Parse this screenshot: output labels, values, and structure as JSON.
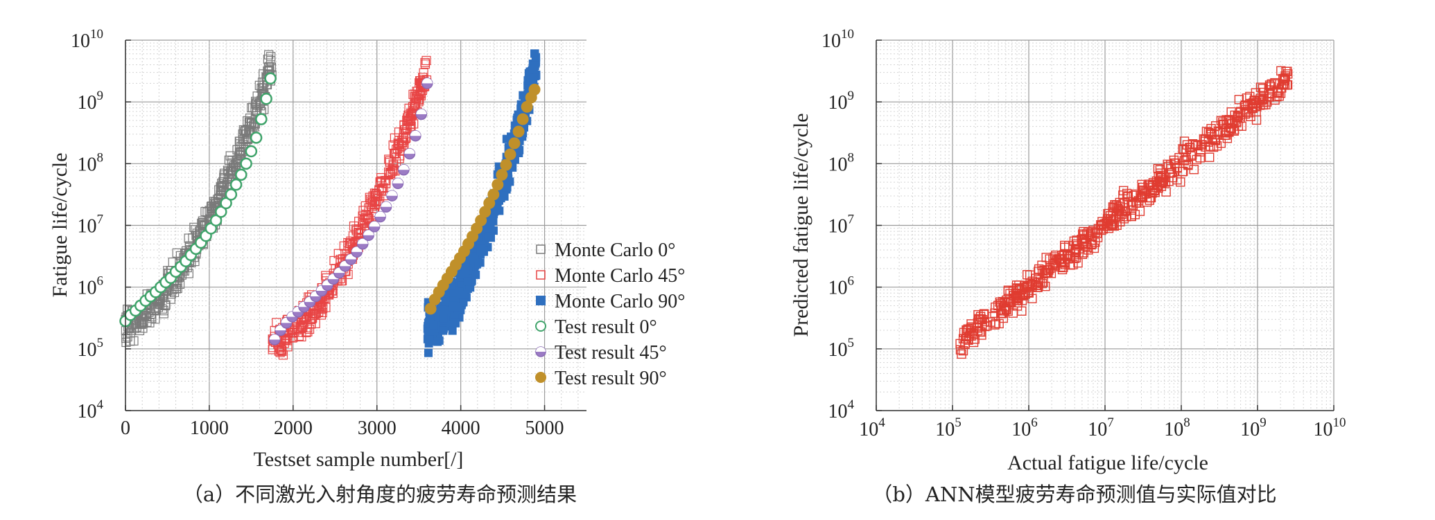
{
  "chart_data": [
    {
      "type": "scatter",
      "caption": "（a）不同激光入射角度的疲劳寿命预测结果",
      "xlabel": "Testset sample number[/]",
      "ylabel": "Fatigue life/cycle",
      "xscale": "linear",
      "yscale": "log",
      "xlim": [
        0,
        5500
      ],
      "ylim": [
        10000,
        10000000000
      ],
      "xticks": [
        "0",
        "1000",
        "2000",
        "3000",
        "4000",
        "5000"
      ],
      "yticks": [
        {
          "base": "10",
          "exp": "4"
        },
        {
          "base": "10",
          "exp": "5"
        },
        {
          "base": "10",
          "exp": "6"
        },
        {
          "base": "10",
          "exp": "7"
        },
        {
          "base": "10",
          "exp": "8"
        },
        {
          "base": "10",
          "exp": "9"
        },
        {
          "base": "10",
          "exp": "10"
        }
      ],
      "grid": true,
      "legend_position": "right",
      "series": [
        {
          "name": "Monte Carlo 0°",
          "marker": "open-square",
          "color": "#7a7a7a",
          "x_range": [
            0,
            1750
          ],
          "log10_start": [
            5.2,
            5.6
          ],
          "log10_end": [
            9.5,
            9.7
          ],
          "spread_decades": 0.55
        },
        {
          "name": "Monte Carlo 45°",
          "marker": "open-square",
          "color": "#e84545",
          "x_range": [
            1750,
            3600
          ],
          "log10_start": [
            4.9,
            5.3
          ],
          "log10_end": [
            9.4,
            9.6
          ],
          "spread_decades": 0.5
        },
        {
          "name": "Monte Carlo 90°",
          "marker": "filled-square",
          "color": "#2e6fbf",
          "x_range": [
            3600,
            4900
          ],
          "log10_start": [
            5.0,
            5.7
          ],
          "log10_end": [
            9.5,
            9.7
          ],
          "spread_decades": 0.7
        },
        {
          "name": "Test result 0°",
          "marker": "open-circle",
          "color": "#3fa36a",
          "x": [
            0,
            60,
            120,
            180,
            240,
            300,
            360,
            420,
            480,
            540,
            600,
            660,
            720,
            780,
            840,
            900,
            960,
            1020,
            1080,
            1140,
            1200,
            1260,
            1320,
            1380,
            1440,
            1500,
            1560,
            1620,
            1680,
            1730
          ],
          "y_log10": [
            5.45,
            5.55,
            5.62,
            5.7,
            5.78,
            5.85,
            5.92,
            6.0,
            6.08,
            6.15,
            6.25,
            6.33,
            6.42,
            6.52,
            6.62,
            6.72,
            6.83,
            6.95,
            7.08,
            7.22,
            7.36,
            7.5,
            7.66,
            7.82,
            8.0,
            8.2,
            8.42,
            8.72,
            9.05,
            9.38
          ]
        },
        {
          "name": "Test result 45°",
          "marker": "half-circle",
          "color": "#9b7bc4",
          "x": [
            1780,
            1850,
            1920,
            1990,
            2060,
            2130,
            2200,
            2270,
            2340,
            2410,
            2480,
            2550,
            2620,
            2690,
            2760,
            2830,
            2900,
            2970,
            3040,
            3110,
            3180,
            3250,
            3320,
            3390,
            3460,
            3530,
            3600
          ],
          "y_log10": [
            5.15,
            5.3,
            5.42,
            5.52,
            5.6,
            5.68,
            5.76,
            5.85,
            5.94,
            6.03,
            6.13,
            6.23,
            6.34,
            6.45,
            6.57,
            6.7,
            6.84,
            6.98,
            7.14,
            7.3,
            7.48,
            7.68,
            7.9,
            8.16,
            8.45,
            8.8,
            9.3
          ]
        },
        {
          "name": "Test result 90°",
          "marker": "filled-circle",
          "color": "#c0902a",
          "x": [
            3640,
            3690,
            3740,
            3790,
            3840,
            3890,
            3940,
            3990,
            4040,
            4090,
            4140,
            4190,
            4240,
            4290,
            4340,
            4390,
            4440,
            4490,
            4540,
            4590,
            4640,
            4690,
            4740,
            4790,
            4840,
            4880
          ],
          "y_log10": [
            5.65,
            5.8,
            5.92,
            6.03,
            6.14,
            6.25,
            6.36,
            6.47,
            6.58,
            6.7,
            6.82,
            6.95,
            7.08,
            7.22,
            7.36,
            7.5,
            7.66,
            7.82,
            7.98,
            8.15,
            8.33,
            8.52,
            8.72,
            8.92,
            9.07,
            9.2
          ]
        }
      ]
    },
    {
      "type": "scatter",
      "caption": "（b）ANN模型疲劳寿命预测值与实际值对比",
      "xlabel": "Actual fatigue life/cycle",
      "ylabel": "Predicted fatigue life/cycle",
      "xscale": "log",
      "yscale": "log",
      "xlim": [
        10000,
        10000000000
      ],
      "ylim": [
        10000,
        10000000000
      ],
      "xticks": [
        {
          "base": "10",
          "exp": "4"
        },
        {
          "base": "10",
          "exp": "5"
        },
        {
          "base": "10",
          "exp": "6"
        },
        {
          "base": "10",
          "exp": "7"
        },
        {
          "base": "10",
          "exp": "8"
        },
        {
          "base": "10",
          "exp": "9"
        },
        {
          "base": "10",
          "exp": "10"
        }
      ],
      "yticks": [
        {
          "base": "10",
          "exp": "4"
        },
        {
          "base": "10",
          "exp": "5"
        },
        {
          "base": "10",
          "exp": "6"
        },
        {
          "base": "10",
          "exp": "7"
        },
        {
          "base": "10",
          "exp": "8"
        },
        {
          "base": "10",
          "exp": "9"
        },
        {
          "base": "10",
          "exp": "10"
        }
      ],
      "grid": true,
      "series": [
        {
          "marker": "open-square",
          "color": "#e03c31",
          "x_log10_range": [
            5.1,
            9.4
          ],
          "y_equals_x_spread_decades": 0.45
        }
      ]
    }
  ]
}
